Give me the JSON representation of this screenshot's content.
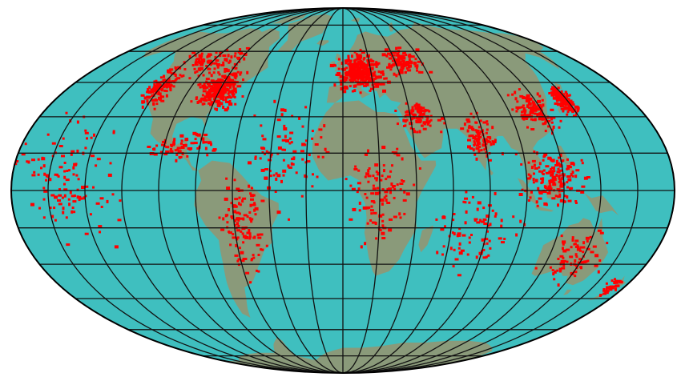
{
  "map": {
    "projection": "mollweide",
    "colors": {
      "background": "#ffffff",
      "ocean": "#3fbfbf",
      "land": "#8a9a7a",
      "graticule": "#111111",
      "outline": "#000000",
      "points": "#ff0000"
    },
    "graticule": {
      "parallels_deg": [
        -75,
        -60,
        -45,
        -30,
        -15,
        0,
        15,
        30,
        45,
        60,
        75
      ],
      "meridians_deg": [
        -180,
        -160,
        -140,
        -120,
        -100,
        -80,
        -60,
        -40,
        -20,
        0,
        20,
        40,
        60,
        80,
        100,
        120,
        140,
        160,
        180
      ]
    },
    "points_layer": {
      "clusters": [
        {
          "region": "north-america-east",
          "lon": -80,
          "lat": 42,
          "spread_lon": 12,
          "spread_lat": 8,
          "count": 260
        },
        {
          "region": "north-america-west",
          "lon": -120,
          "lat": 42,
          "spread_lon": 8,
          "spread_lat": 8,
          "count": 120
        },
        {
          "region": "canada",
          "lon": -100,
          "lat": 55,
          "spread_lon": 25,
          "spread_lat": 6,
          "count": 90
        },
        {
          "region": "mexico-caribbean",
          "lon": -90,
          "lat": 18,
          "spread_lon": 15,
          "spread_lat": 5,
          "count": 70
        },
        {
          "region": "south-america",
          "lon": -55,
          "lat": -15,
          "spread_lon": 12,
          "spread_lat": 18,
          "count": 110
        },
        {
          "region": "europe",
          "lon": 12,
          "lat": 50,
          "spread_lon": 15,
          "spread_lat": 8,
          "count": 320
        },
        {
          "region": "russia-west",
          "lon": 45,
          "lat": 55,
          "spread_lon": 15,
          "spread_lat": 6,
          "count": 110
        },
        {
          "region": "middle-east",
          "lon": 45,
          "lat": 30,
          "spread_lon": 12,
          "spread_lat": 6,
          "count": 80
        },
        {
          "region": "africa",
          "lon": 20,
          "lat": 0,
          "spread_lon": 18,
          "spread_lat": 20,
          "count": 110
        },
        {
          "region": "india",
          "lon": 78,
          "lat": 22,
          "spread_lon": 8,
          "spread_lat": 8,
          "count": 90
        },
        {
          "region": "china",
          "lon": 115,
          "lat": 33,
          "spread_lon": 12,
          "spread_lat": 8,
          "count": 110
        },
        {
          "region": "japan",
          "lon": 138,
          "lat": 37,
          "spread_lon": 5,
          "spread_lat": 6,
          "count": 160
        },
        {
          "region": "southeast-asia",
          "lon": 115,
          "lat": 5,
          "spread_lon": 15,
          "spread_lat": 10,
          "count": 160
        },
        {
          "region": "australia",
          "lon": 135,
          "lat": -27,
          "spread_lon": 15,
          "spread_lat": 10,
          "count": 80
        },
        {
          "region": "new-zealand",
          "lon": 172,
          "lat": -40,
          "spread_lon": 5,
          "spread_lat": 4,
          "count": 35
        },
        {
          "region": "atlantic-scatter",
          "lon": -30,
          "lat": 15,
          "spread_lon": 20,
          "spread_lat": 20,
          "count": 90
        },
        {
          "region": "pacific-scatter",
          "lon": -150,
          "lat": 5,
          "spread_lon": 25,
          "spread_lat": 25,
          "count": 120
        },
        {
          "region": "indian-ocean-scatter",
          "lon": 75,
          "lat": -15,
          "spread_lon": 20,
          "spread_lat": 15,
          "count": 80
        }
      ]
    }
  }
}
